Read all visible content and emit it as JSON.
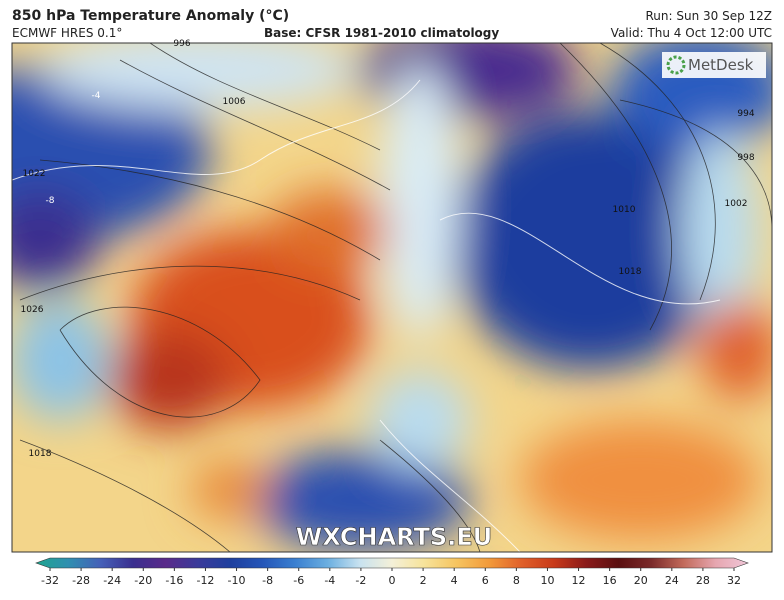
{
  "header": {
    "title": "850 hPa Temperature Anomaly (°C)",
    "model": "ECMWF HRES 0.1°",
    "base": "Base: CFSR 1981-2010 climatology",
    "run": "Run: Sun 30 Sep 12Z",
    "valid": "Valid: Thu 4 Oct 12:00 UTC"
  },
  "logo": "MetDesk",
  "watermark": "WXCHARTS.EU",
  "isobar_labels": [
    "996",
    "1006",
    "994",
    "998",
    "1002",
    "1010",
    "1018",
    "1022",
    "1026",
    "1018",
    "-4",
    "-8"
  ],
  "colorbar": {
    "ticks": [
      -32,
      -28,
      -24,
      -20,
      -16,
      -12,
      -10,
      -8,
      -6,
      -4,
      -2,
      0,
      2,
      4,
      6,
      8,
      10,
      12,
      16,
      20,
      24,
      28,
      32
    ],
    "colors": [
      "#1fa58f",
      "#2f8fb0",
      "#4560b8",
      "#3a2f8f",
      "#5a2a8a",
      "#3a3a9a",
      "#1e3f9e",
      "#2556b8",
      "#3a7fd0",
      "#6aaee0",
      "#c8e2f0",
      "#f4f0d8",
      "#f7e39a",
      "#f6c460",
      "#f29a3a",
      "#e0602a",
      "#c83a1a",
      "#8a1a1a",
      "#5a0f10",
      "#7a2a2a",
      "#c26a5a",
      "#e6a6b0",
      "#f0c6d8"
    ]
  }
}
